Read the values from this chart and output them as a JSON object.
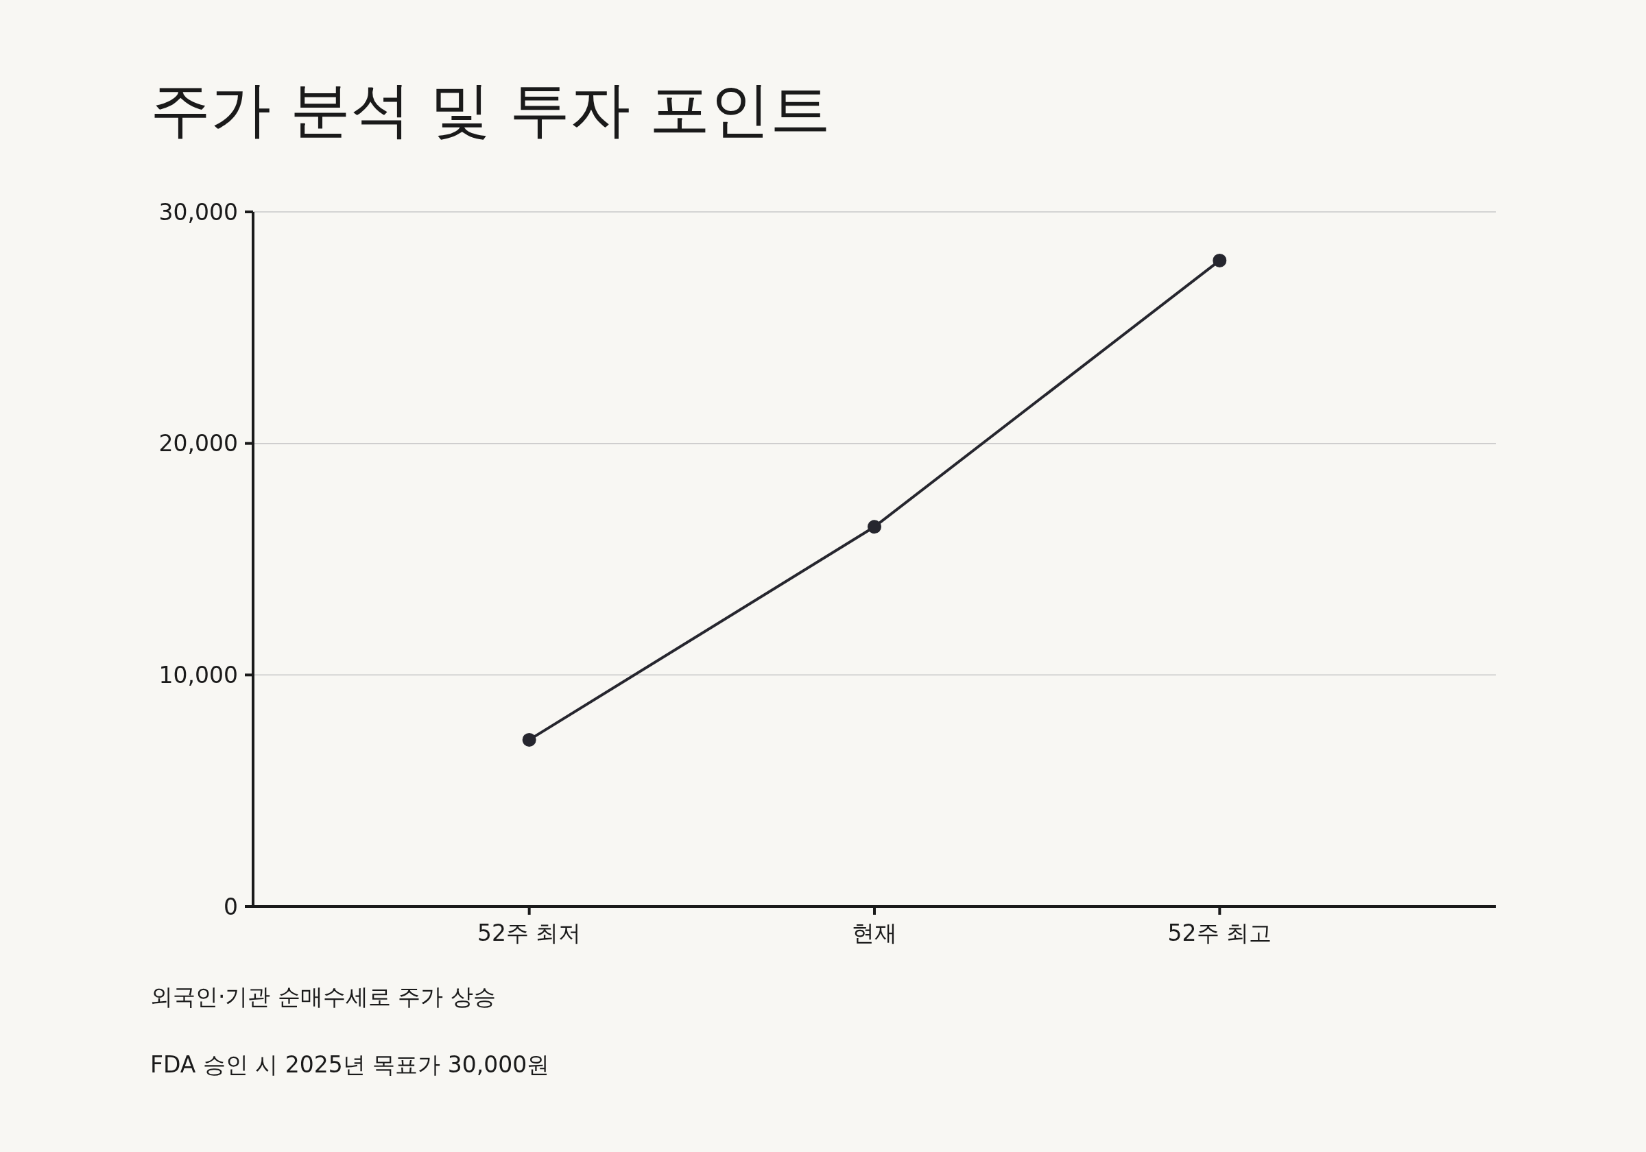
{
  "chart_data": {
    "type": "line",
    "title": "주가 분석 및 투자 포인트",
    "categories": [
      "52주 최저",
      "현재",
      "52주 최고"
    ],
    "series": [
      {
        "color": "#26262e",
        "values": [
          7200,
          16400,
          27900
        ]
      }
    ],
    "ylim": [
      0,
      30000
    ],
    "yticks": [
      {
        "value": 0,
        "label": "0"
      },
      {
        "value": 10000,
        "label": "10,000"
      },
      {
        "value": 20000,
        "label": "20,000"
      },
      {
        "value": 30000,
        "label": "30,000"
      }
    ],
    "grid": "y",
    "marker": "circle",
    "line_style": "solid",
    "annotations": [
      "외국인·기관 순매수세로 주가 상승",
      "FDA 승인 시 2025년 목표가 30,000원"
    ]
  }
}
